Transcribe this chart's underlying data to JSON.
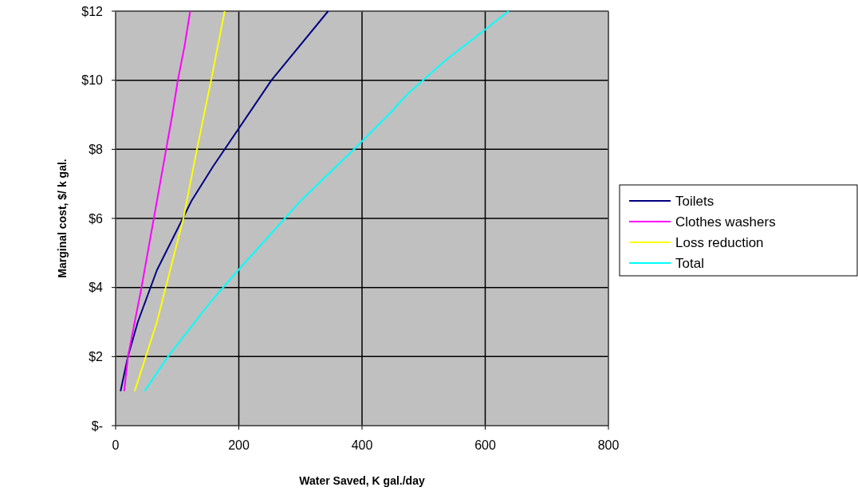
{
  "chart_data": {
    "type": "line",
    "xlabel": "Water Saved, K gal./day",
    "ylabel": "Marginal cost, $/ k gal.",
    "xlim": [
      0,
      800
    ],
    "xticks": [
      0,
      200,
      400,
      600,
      800
    ],
    "ylim": [
      0,
      12
    ],
    "yticks": [
      {
        "value": 0,
        "label": "$-"
      },
      {
        "value": 2,
        "label": "$2"
      },
      {
        "value": 4,
        "label": "$4"
      },
      {
        "value": 6,
        "label": "$6"
      },
      {
        "value": 8,
        "label": "$8"
      },
      {
        "value": 10,
        "label": "$10"
      },
      {
        "value": 12,
        "label": "$12"
      }
    ],
    "grid": true,
    "legend": "right",
    "marker": "none",
    "line_style": "solid",
    "series": [
      {
        "name": "Toilets",
        "color": "#000080",
        "x": [
          8,
          20,
          36,
          67,
          123,
          158,
          253,
          345
        ],
        "values": [
          1,
          2,
          3,
          4.5,
          6.5,
          7.5,
          10,
          12
        ]
      },
      {
        "name": "Clothes washers",
        "color": "#ff00ff",
        "x": [
          14,
          20,
          42,
          52,
          62,
          72,
          82,
          92,
          101,
          112,
          121
        ],
        "values": [
          1,
          2,
          4,
          5,
          6,
          7,
          8,
          9,
          10,
          11,
          12
        ]
      },
      {
        "name": "Loss reduction",
        "color": "#ffff00",
        "x": [
          31,
          49,
          67,
          110,
          132,
          155,
          177
        ],
        "values": [
          1,
          2,
          3,
          6,
          8,
          10,
          12
        ]
      },
      {
        "name": "Total",
        "color": "#00ffff",
        "x": [
          47,
          85,
          155,
          199,
          300,
          387,
          443,
          474,
          537,
          595,
          638
        ],
        "values": [
          1,
          2,
          3.6,
          4.5,
          6.5,
          8,
          9,
          9.6,
          10.6,
          11.4,
          12
        ]
      }
    ]
  }
}
